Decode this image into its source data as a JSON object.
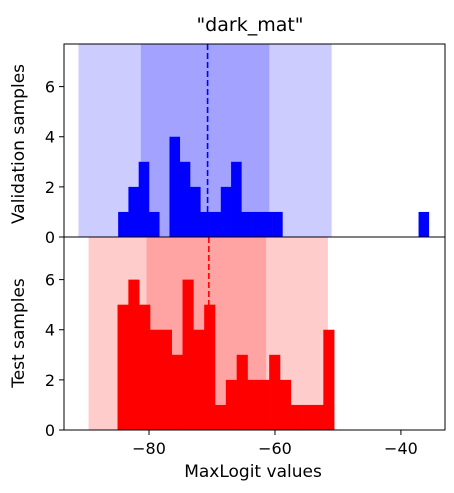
{
  "chart_data": [
    {
      "type": "bar",
      "panel": "top",
      "title": "\"dark_mat\"",
      "ylabel": "Validation samples",
      "xlim": [
        -93.5,
        -33.0
      ],
      "ylim": [
        0,
        7.7
      ],
      "yticks": [
        0,
        2,
        4,
        6
      ],
      "bin_width": 1.63,
      "bin_left_edges": [
        -84.9,
        -83.27,
        -81.64,
        -80.01,
        -78.38,
        -76.75,
        -75.12,
        -73.49,
        -71.86,
        -70.23,
        -68.6,
        -66.97,
        -65.34,
        -63.71,
        -62.08,
        -60.45,
        -58.82,
        -37.2
      ],
      "values": [
        1,
        2,
        3,
        1,
        0,
        4,
        3,
        2,
        1,
        1,
        2,
        3,
        1,
        1,
        1,
        1,
        0,
        1
      ],
      "color": "#0000ff",
      "mean_line": -70.7,
      "inner_band": [
        -81.3,
        -60.9
      ],
      "outer_band": [
        -91.2,
        -51.0
      ],
      "grid": false
    },
    {
      "type": "bar",
      "panel": "bottom",
      "ylabel": "Test samples",
      "xlabel": "MaxLogit values",
      "xlim": [
        -93.5,
        -33.0
      ],
      "ylim": [
        0,
        7.7
      ],
      "yticks": [
        0,
        2,
        4,
        6
      ],
      "xticks": [
        -80,
        -60,
        -40
      ],
      "bin_width": 1.72,
      "bin_left_edges": [
        -85.0,
        -83.28,
        -81.56,
        -79.84,
        -78.12,
        -76.4,
        -74.68,
        -72.96,
        -71.24,
        -69.52,
        -67.8,
        -66.08,
        -64.36,
        -62.64,
        -60.92,
        -59.2,
        -57.48,
        -55.76,
        -54.04,
        -52.32
      ],
      "values": [
        5,
        6,
        5,
        4,
        4,
        3,
        6,
        4,
        5,
        1,
        2,
        3,
        2,
        2,
        3,
        2,
        1,
        1,
        1,
        4
      ],
      "color": "#ff0000",
      "mean_line": -70.5,
      "inner_band": [
        -80.4,
        -61.4
      ],
      "outer_band": [
        -89.6,
        -51.6
      ],
      "grid": false
    }
  ]
}
